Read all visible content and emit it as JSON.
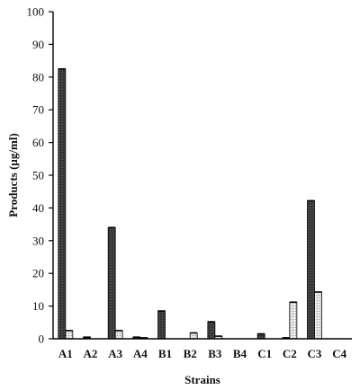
{
  "chart_data": {
    "type": "bar",
    "title": "",
    "xlabel": "Strains",
    "ylabel": "Products (µg/ml)",
    "ylim": [
      0,
      100
    ],
    "yticks": [
      0,
      10,
      20,
      30,
      40,
      50,
      60,
      70,
      80,
      90,
      100
    ],
    "grid": false,
    "legend": "none",
    "categories": [
      "A1",
      "A2",
      "A3",
      "A4",
      "B1",
      "B2",
      "B3",
      "B4",
      "C1",
      "C2",
      "C3",
      "C4"
    ],
    "series": [
      {
        "color": "#3a3a3a",
        "pattern": "dark-crosshatch",
        "values": [
          82.5,
          0.5,
          34,
          0.5,
          8.5,
          0,
          5.2,
          0,
          1.5,
          0.3,
          42.2,
          0
        ]
      },
      {
        "color": "#e2e2e2",
        "pattern": "light-dotted",
        "values": [
          2.5,
          0,
          2.5,
          0.3,
          0,
          1.8,
          0.8,
          0,
          0,
          11.2,
          14.3,
          0
        ]
      }
    ]
  }
}
